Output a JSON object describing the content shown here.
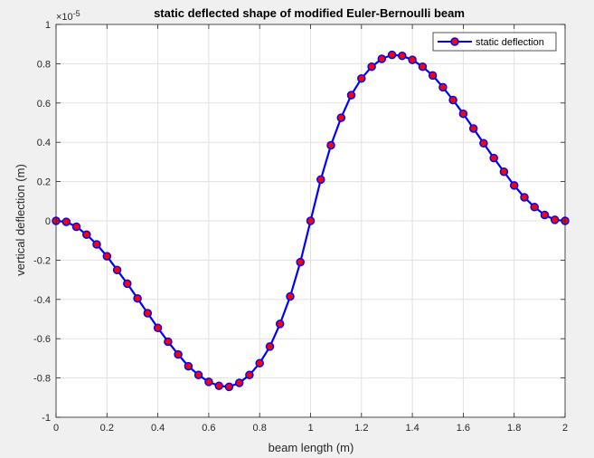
{
  "chart_data": {
    "type": "line",
    "title": "static deflected shape of modified Euler-Bernoulli beam",
    "xlabel": "beam length (m)",
    "ylabel": "vertical deflection (m)",
    "y_exponent_label": "×10",
    "y_exponent_power": "-5",
    "xlim": [
      0,
      2
    ],
    "ylim": [
      -1,
      1
    ],
    "xticks": [
      "0",
      "0.2",
      "0.4",
      "0.6",
      "0.8",
      "1",
      "1.2",
      "1.4",
      "1.6",
      "1.8",
      "2"
    ],
    "yticks": [
      "-1",
      "-0.8",
      "-0.6",
      "-0.4",
      "-0.2",
      "0",
      "0.2",
      "0.4",
      "0.6",
      "0.8",
      "1"
    ],
    "grid": true,
    "legend_position": "top-right",
    "series": [
      {
        "name": "static deflection",
        "line_color": "#0000ff",
        "marker_color": "#ff0000",
        "marker": "circle",
        "x": [
          0,
          0.04,
          0.08,
          0.12,
          0.16,
          0.2,
          0.24,
          0.28,
          0.32,
          0.36,
          0.4,
          0.44,
          0.48,
          0.52,
          0.56,
          0.6,
          0.64,
          0.68,
          0.72,
          0.76,
          0.8,
          0.84,
          0.88,
          0.92,
          0.96,
          1.0,
          1.04,
          1.08,
          1.12,
          1.16,
          1.2,
          1.24,
          1.28,
          1.32,
          1.36,
          1.4,
          1.44,
          1.48,
          1.52,
          1.56,
          1.6,
          1.64,
          1.68,
          1.72,
          1.76,
          1.8,
          1.84,
          1.88,
          1.92,
          1.96,
          2.0
        ],
        "y": [
          0,
          -0.005,
          -0.03,
          -0.07,
          -0.12,
          -0.18,
          -0.25,
          -0.32,
          -0.395,
          -0.47,
          -0.545,
          -0.615,
          -0.68,
          -0.74,
          -0.785,
          -0.82,
          -0.84,
          -0.845,
          -0.825,
          -0.785,
          -0.725,
          -0.64,
          -0.525,
          -0.385,
          -0.21,
          0.0,
          0.21,
          0.385,
          0.525,
          0.64,
          0.725,
          0.785,
          0.825,
          0.845,
          0.84,
          0.82,
          0.785,
          0.74,
          0.68,
          0.615,
          0.545,
          0.47,
          0.395,
          0.32,
          0.25,
          0.18,
          0.12,
          0.07,
          0.03,
          0.005,
          0
        ]
      }
    ]
  }
}
